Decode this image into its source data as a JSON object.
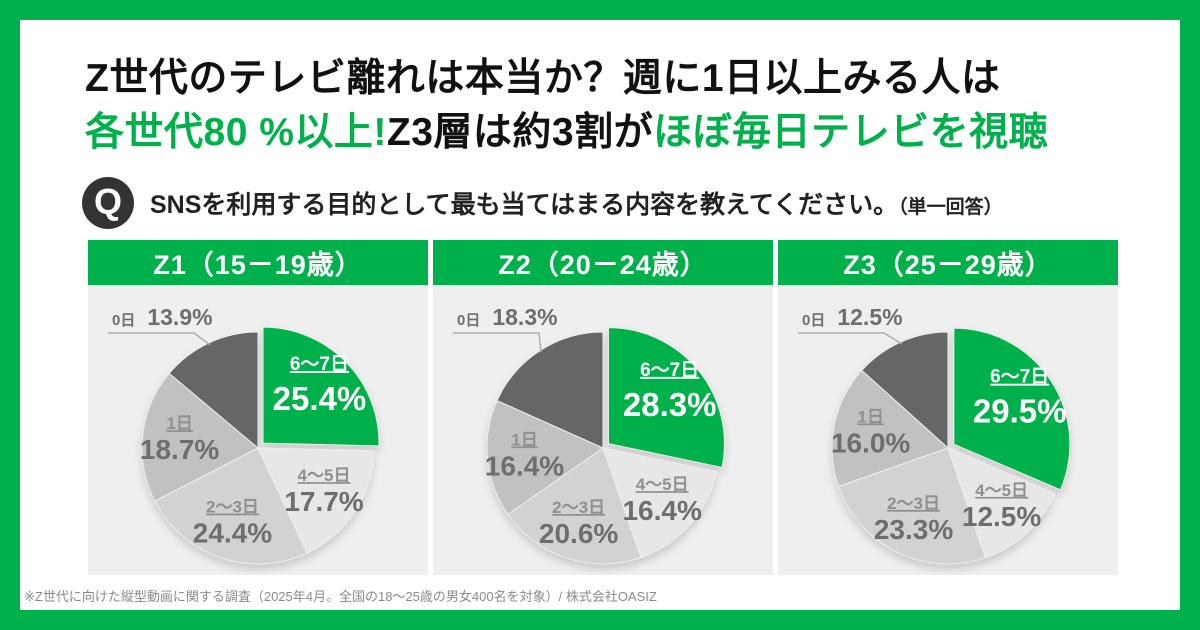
{
  "header": {
    "title_line1": "Z世代のテレビ離れは本当か？週に1日以上みる人は",
    "title_line2_green1": "各世代80 %以上!",
    "title_line2_black": "Z3層は約3割が",
    "title_line2_green2": "ほぼ毎日テレビを視聴"
  },
  "question": {
    "icon_letter": "Q",
    "text": "SNSを利用する目的として最も当てはまる内容を教えてください。",
    "suffix": "（単一回答）"
  },
  "footnote": "※Z世代に向けた縦型動画に関する調査（2025年4月。全国の18〜25歳の男女400名を対象）/ 株式会社OASIZ",
  "colors": {
    "accent_green": "#00B14B",
    "panel_background": "#EFEFEF",
    "slice_colors": [
      "#00B14B",
      "#E7E7E7",
      "#D2D2D2",
      "#C1C1C1",
      "#666666"
    ],
    "label_name": "#8F8F8F",
    "label_pct": "#6E6E6E",
    "inside_label": "#FFFFFF",
    "leader": "#ADADAD",
    "question_icon_bg": "#333333",
    "footnote_text": "#8A8A8A"
  },
  "chart_data": [
    {
      "type": "pie",
      "title": "Z1（15－19歳）",
      "categories": [
        "6〜7日",
        "4〜5日",
        "2〜3日",
        "1日",
        "0日"
      ],
      "values": [
        25.4,
        17.7,
        24.4,
        18.7,
        13.9
      ],
      "unit": "%",
      "highlight_category": "6〜7日",
      "start_angle_deg": 0,
      "direction": "clockwise",
      "exploded_slice": "6〜7日",
      "outside_label_slice": "0日"
    },
    {
      "type": "pie",
      "title": "Z2（20－24歳）",
      "categories": [
        "6〜7日",
        "4〜5日",
        "2〜3日",
        "1日",
        "0日"
      ],
      "values": [
        28.3,
        16.4,
        20.6,
        16.4,
        18.3
      ],
      "unit": "%",
      "highlight_category": "6〜7日",
      "start_angle_deg": 0,
      "direction": "clockwise",
      "exploded_slice": "6〜7日",
      "outside_label_slice": "0日"
    },
    {
      "type": "pie",
      "title": "Z3（25－29歳）",
      "categories": [
        "6〜7日",
        "4〜5日",
        "2〜3日",
        "1日",
        "0日"
      ],
      "values": [
        29.5,
        12.5,
        23.3,
        16.0,
        12.5
      ],
      "unit": "%",
      "highlight_category": "6〜7日",
      "start_angle_deg": 0,
      "direction": "clockwise",
      "exploded_slice": "6〜7日",
      "outside_label_slice": "0日"
    }
  ]
}
